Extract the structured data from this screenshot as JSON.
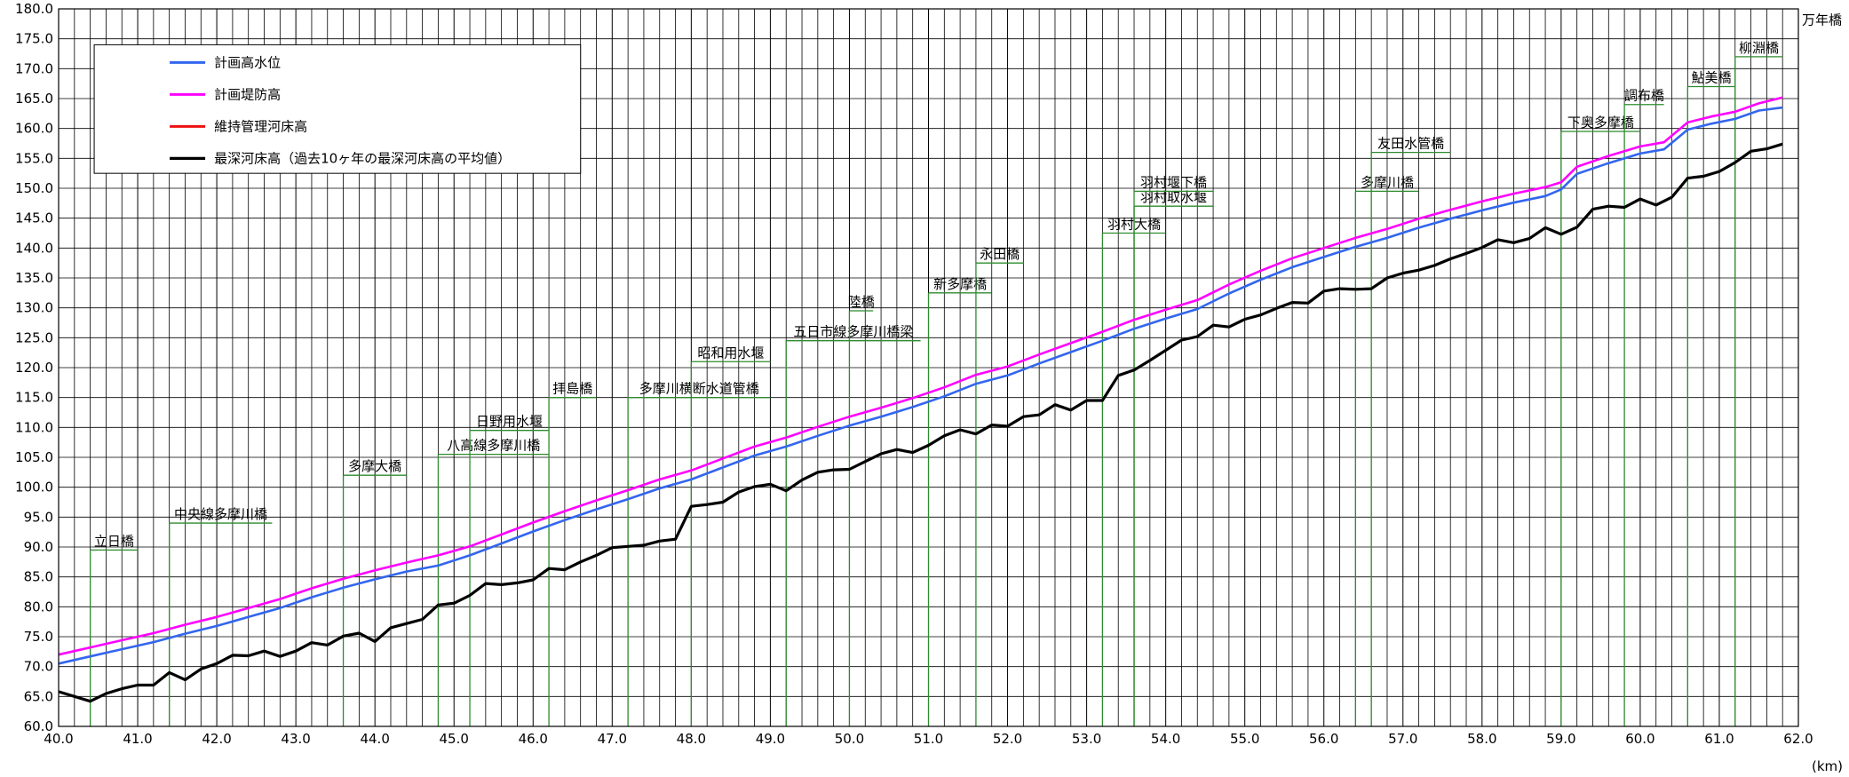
{
  "chart_data": {
    "type": "line",
    "xlabel": "(km)",
    "ylabel": "",
    "xlim": [
      40.0,
      62.0
    ],
    "ylim": [
      60.0,
      180.0
    ],
    "x_ticks": [
      "40.0",
      "41.0",
      "42.0",
      "43.0",
      "44.0",
      "45.0",
      "46.0",
      "47.0",
      "48.0",
      "49.0",
      "50.0",
      "51.0",
      "52.0",
      "53.0",
      "54.0",
      "55.0",
      "56.0",
      "57.0",
      "58.0",
      "59.0",
      "60.0",
      "61.0",
      "62.0"
    ],
    "y_ticks": [
      "60.0",
      "65.0",
      "70.0",
      "75.0",
      "80.0",
      "85.0",
      "90.0",
      "95.0",
      "100.0",
      "105.0",
      "110.0",
      "115.0",
      "120.0",
      "125.0",
      "130.0",
      "135.0",
      "140.0",
      "145.0",
      "150.0",
      "155.0",
      "160.0",
      "165.0",
      "170.0",
      "175.0",
      "180.0"
    ],
    "grid": true,
    "legend_position": "top-left",
    "series": [
      {
        "name": "計画高水位",
        "color": "#3366ee",
        "points": [
          [
            40.0,
            70.5
          ],
          [
            40.4,
            71.7
          ],
          [
            40.8,
            72.9
          ],
          [
            41.2,
            74.1
          ],
          [
            41.6,
            75.5
          ],
          [
            42.0,
            76.8
          ],
          [
            42.4,
            78.3
          ],
          [
            42.8,
            79.8
          ],
          [
            43.2,
            81.6
          ],
          [
            43.6,
            83.2
          ],
          [
            44.0,
            84.6
          ],
          [
            44.4,
            85.9
          ],
          [
            44.8,
            86.9
          ],
          [
            45.2,
            88.6
          ],
          [
            45.6,
            90.6
          ],
          [
            46.0,
            92.6
          ],
          [
            46.4,
            94.5
          ],
          [
            46.8,
            96.3
          ],
          [
            47.2,
            98.0
          ],
          [
            47.6,
            99.8
          ],
          [
            48.0,
            101.3
          ],
          [
            48.4,
            103.3
          ],
          [
            48.8,
            105.3
          ],
          [
            49.2,
            106.8
          ],
          [
            49.6,
            108.6
          ],
          [
            50.0,
            110.3
          ],
          [
            50.4,
            111.8
          ],
          [
            50.8,
            113.4
          ],
          [
            51.2,
            115.2
          ],
          [
            51.6,
            117.3
          ],
          [
            52.0,
            118.7
          ],
          [
            52.4,
            120.7
          ],
          [
            52.8,
            122.6
          ],
          [
            53.2,
            124.5
          ],
          [
            53.6,
            126.5
          ],
          [
            54.0,
            128.2
          ],
          [
            54.4,
            129.8
          ],
          [
            54.8,
            132.4
          ],
          [
            55.2,
            134.7
          ],
          [
            55.6,
            136.8
          ],
          [
            56.0,
            138.5
          ],
          [
            56.4,
            140.2
          ],
          [
            56.8,
            141.7
          ],
          [
            57.2,
            143.4
          ],
          [
            57.6,
            144.9
          ],
          [
            58.0,
            146.3
          ],
          [
            58.4,
            147.6
          ],
          [
            58.8,
            148.7
          ],
          [
            59.0,
            149.8
          ],
          [
            59.2,
            152.4
          ],
          [
            59.6,
            154.2
          ],
          [
            60.0,
            155.8
          ],
          [
            60.3,
            156.5
          ],
          [
            60.6,
            159.8
          ],
          [
            60.9,
            160.8
          ],
          [
            61.2,
            161.6
          ],
          [
            61.5,
            163.0
          ],
          [
            61.8,
            163.5
          ]
        ]
      },
      {
        "name": "計画堤防高",
        "color": "#ff00ff",
        "points": [
          [
            40.0,
            72.0
          ],
          [
            40.4,
            73.2
          ],
          [
            40.8,
            74.4
          ],
          [
            41.2,
            75.6
          ],
          [
            41.6,
            77.0
          ],
          [
            42.0,
            78.3
          ],
          [
            42.4,
            79.8
          ],
          [
            42.8,
            81.3
          ],
          [
            43.2,
            83.1
          ],
          [
            43.6,
            84.7
          ],
          [
            44.0,
            86.1
          ],
          [
            44.4,
            87.4
          ],
          [
            44.8,
            88.6
          ],
          [
            45.2,
            90.1
          ],
          [
            45.6,
            92.1
          ],
          [
            46.0,
            94.1
          ],
          [
            46.4,
            96.0
          ],
          [
            46.8,
            97.8
          ],
          [
            47.2,
            99.5
          ],
          [
            47.6,
            101.3
          ],
          [
            48.0,
            102.8
          ],
          [
            48.4,
            104.8
          ],
          [
            48.8,
            106.8
          ],
          [
            49.2,
            108.3
          ],
          [
            49.6,
            110.1
          ],
          [
            50.0,
            111.8
          ],
          [
            50.4,
            113.3
          ],
          [
            50.8,
            114.9
          ],
          [
            51.2,
            116.7
          ],
          [
            51.6,
            118.8
          ],
          [
            52.0,
            120.2
          ],
          [
            52.4,
            122.2
          ],
          [
            52.8,
            124.1
          ],
          [
            53.2,
            126.0
          ],
          [
            53.6,
            128.0
          ],
          [
            54.0,
            129.7
          ],
          [
            54.4,
            131.3
          ],
          [
            54.8,
            133.9
          ],
          [
            55.2,
            136.2
          ],
          [
            55.6,
            138.3
          ],
          [
            56.0,
            140.0
          ],
          [
            56.4,
            141.7
          ],
          [
            56.8,
            143.2
          ],
          [
            57.2,
            144.9
          ],
          [
            57.6,
            146.4
          ],
          [
            58.0,
            147.8
          ],
          [
            58.4,
            149.1
          ],
          [
            58.8,
            150.2
          ],
          [
            59.0,
            151.0
          ],
          [
            59.2,
            153.6
          ],
          [
            59.6,
            155.4
          ],
          [
            60.0,
            157.0
          ],
          [
            60.3,
            157.7
          ],
          [
            60.6,
            161.0
          ],
          [
            60.9,
            162.0
          ],
          [
            61.2,
            162.8
          ],
          [
            61.5,
            164.2
          ],
          [
            61.8,
            165.2
          ]
        ]
      },
      {
        "name": "維持管理河床高",
        "color": "#ee1111",
        "points": []
      },
      {
        "name": "最深河床高（過去10ヶ年の最深河床高の平均値）",
        "color": "#000000",
        "points": [
          [
            40.0,
            65.8
          ],
          [
            40.2,
            65.0
          ],
          [
            40.4,
            64.2
          ],
          [
            40.6,
            65.5
          ],
          [
            40.8,
            66.3
          ],
          [
            41.0,
            66.9
          ],
          [
            41.2,
            66.9
          ],
          [
            41.4,
            69.0
          ],
          [
            41.6,
            67.8
          ],
          [
            41.8,
            69.6
          ],
          [
            42.0,
            70.5
          ],
          [
            42.2,
            71.9
          ],
          [
            42.4,
            71.8
          ],
          [
            42.6,
            72.6
          ],
          [
            42.8,
            71.7
          ],
          [
            43.0,
            72.6
          ],
          [
            43.2,
            74.0
          ],
          [
            43.4,
            73.6
          ],
          [
            43.6,
            75.1
          ],
          [
            43.8,
            75.6
          ],
          [
            44.0,
            74.2
          ],
          [
            44.2,
            76.5
          ],
          [
            44.4,
            77.2
          ],
          [
            44.6,
            77.9
          ],
          [
            44.8,
            80.3
          ],
          [
            45.0,
            80.6
          ],
          [
            45.2,
            81.9
          ],
          [
            45.4,
            83.9
          ],
          [
            45.6,
            83.7
          ],
          [
            45.8,
            84.0
          ],
          [
            46.0,
            84.5
          ],
          [
            46.2,
            86.4
          ],
          [
            46.4,
            86.2
          ],
          [
            46.6,
            87.5
          ],
          [
            46.8,
            88.6
          ],
          [
            47.0,
            89.9
          ],
          [
            47.2,
            90.1
          ],
          [
            47.4,
            90.3
          ],
          [
            47.6,
            91.0
          ],
          [
            47.8,
            91.3
          ],
          [
            48.0,
            96.8
          ],
          [
            48.2,
            97.1
          ],
          [
            48.4,
            97.5
          ],
          [
            48.6,
            99.2
          ],
          [
            48.8,
            100.1
          ],
          [
            49.0,
            100.5
          ],
          [
            49.2,
            99.4
          ],
          [
            49.4,
            101.2
          ],
          [
            49.6,
            102.5
          ],
          [
            49.8,
            102.9
          ],
          [
            50.0,
            103.0
          ],
          [
            50.2,
            104.3
          ],
          [
            50.4,
            105.6
          ],
          [
            50.6,
            106.3
          ],
          [
            50.8,
            105.8
          ],
          [
            51.0,
            107.0
          ],
          [
            51.2,
            108.6
          ],
          [
            51.4,
            109.6
          ],
          [
            51.6,
            108.9
          ],
          [
            51.8,
            110.4
          ],
          [
            52.0,
            110.2
          ],
          [
            52.2,
            111.8
          ],
          [
            52.4,
            112.1
          ],
          [
            52.6,
            113.8
          ],
          [
            52.8,
            112.9
          ],
          [
            53.0,
            114.5
          ],
          [
            53.2,
            114.5
          ],
          [
            53.4,
            118.7
          ],
          [
            53.6,
            119.6
          ],
          [
            53.8,
            121.2
          ],
          [
            54.0,
            122.9
          ],
          [
            54.2,
            124.6
          ],
          [
            54.4,
            125.2
          ],
          [
            54.6,
            127.1
          ],
          [
            54.8,
            126.8
          ],
          [
            55.0,
            128.1
          ],
          [
            55.2,
            128.8
          ],
          [
            55.4,
            129.9
          ],
          [
            55.6,
            130.9
          ],
          [
            55.8,
            130.8
          ],
          [
            56.0,
            132.8
          ],
          [
            56.2,
            133.2
          ],
          [
            56.4,
            133.1
          ],
          [
            56.6,
            133.2
          ],
          [
            56.8,
            135.0
          ],
          [
            57.0,
            135.8
          ],
          [
            57.2,
            136.3
          ],
          [
            57.4,
            137.1
          ],
          [
            57.6,
            138.2
          ],
          [
            57.8,
            139.1
          ],
          [
            58.0,
            140.1
          ],
          [
            58.2,
            141.4
          ],
          [
            58.4,
            140.9
          ],
          [
            58.6,
            141.6
          ],
          [
            58.8,
            143.4
          ],
          [
            59.0,
            142.3
          ],
          [
            59.2,
            143.5
          ],
          [
            59.4,
            146.5
          ],
          [
            59.6,
            147.0
          ],
          [
            59.8,
            146.8
          ],
          [
            60.0,
            148.2
          ],
          [
            60.2,
            147.2
          ],
          [
            60.4,
            148.5
          ],
          [
            60.6,
            151.7
          ],
          [
            60.8,
            152.0
          ],
          [
            61.0,
            152.8
          ],
          [
            61.2,
            154.3
          ],
          [
            61.4,
            156.2
          ],
          [
            61.6,
            156.6
          ],
          [
            61.8,
            157.4
          ]
        ]
      }
    ],
    "bridges": [
      {
        "label": "立日橋",
        "x": 40.4,
        "y": 89.5,
        "end": 41.0
      },
      {
        "label": "中央線多摩川橋",
        "x": 41.4,
        "y": 94.0,
        "end": 42.7
      },
      {
        "label": "多摩大橋",
        "x": 43.6,
        "y": 102.0,
        "end": 44.4
      },
      {
        "label": "八高線多摩川橋",
        "x": 44.8,
        "y": 105.5,
        "end": 46.2
      },
      {
        "label": "日野用水堰",
        "x": 45.2,
        "y": 109.5,
        "end": 46.2
      },
      {
        "label": "拝島橋",
        "x": 46.2,
        "y": 115.0,
        "end": 46.8
      },
      {
        "label": "多摩川横断水道管橋",
        "x": 47.2,
        "y": 115.0,
        "end": 49.0
      },
      {
        "label": "昭和用水堰",
        "x": 48.0,
        "y": 121.0,
        "end": 49.0
      },
      {
        "label": "五日市線多摩川橋梁",
        "x": 49.2,
        "y": 124.5,
        "end": 50.9
      },
      {
        "label": "陸橋",
        "x": 50.0,
        "y": 129.5,
        "end": 50.3
      },
      {
        "label": "新多摩橋",
        "x": 51.0,
        "y": 132.5,
        "end": 51.8
      },
      {
        "label": "永田橋",
        "x": 51.6,
        "y": 137.5,
        "end": 52.2
      },
      {
        "label": "羽村大橋",
        "x": 53.2,
        "y": 142.5,
        "end": 54.0
      },
      {
        "label": "羽村取水堰",
        "x": 53.6,
        "y": 147.0,
        "end": 54.6
      },
      {
        "label": "羽村堰下橋",
        "x": 53.6,
        "y": 149.5,
        "end": 54.6
      },
      {
        "label": "多摩川橋",
        "x": 56.4,
        "y": 149.5,
        "end": 57.2
      },
      {
        "label": "友田水管橋",
        "x": 56.6,
        "y": 156.0,
        "end": 57.6
      },
      {
        "label": "下奥多摩橋",
        "x": 59.0,
        "y": 159.5,
        "end": 60.0
      },
      {
        "label": "調布橋",
        "x": 59.8,
        "y": 164.0,
        "end": 60.3
      },
      {
        "label": "鮎美橋",
        "x": 60.6,
        "y": 167.0,
        "end": 61.2
      },
      {
        "label": "柳淵橋",
        "x": 61.2,
        "y": 172.0,
        "end": 61.8
      },
      {
        "label": "万年橋",
        "x": 62.0,
        "y": 178.0,
        "end": 62.0
      }
    ]
  }
}
